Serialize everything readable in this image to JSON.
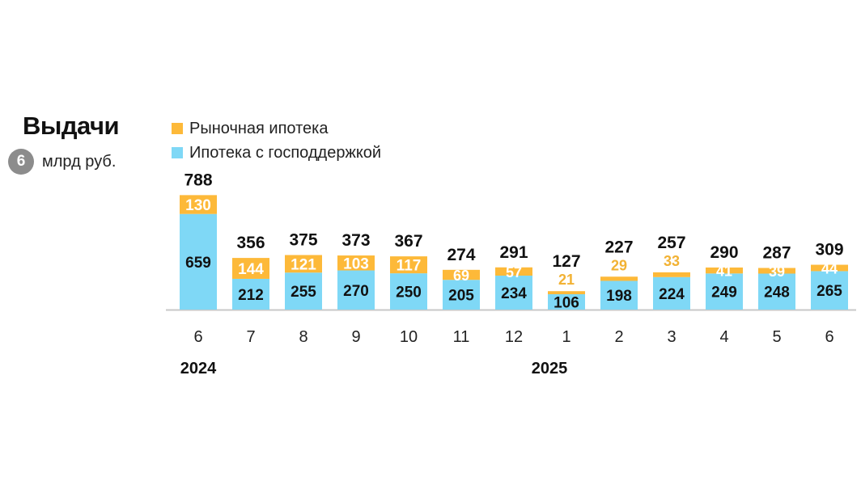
{
  "title": "Выдачи",
  "unit_badge": "6",
  "unit_text": "млрд руб.",
  "colors": {
    "market": "#FDB939",
    "state": "#7FD8F6",
    "market_label_dark": "#ffffff",
    "market_label_light": "#F2B234",
    "axis": "#c8c8c8",
    "text": "#111111"
  },
  "legend": [
    {
      "label": "Рыночная ипотека",
      "color": "#FDB939"
    },
    {
      "label": "Ипотека с господдержкой",
      "color": "#7FD8F6"
    }
  ],
  "chart_data": {
    "type": "bar",
    "stacked": true,
    "categories": [
      "6",
      "7",
      "8",
      "9",
      "10",
      "11",
      "12",
      "1",
      "2",
      "3",
      "4",
      "5",
      "6"
    ],
    "year_labels": [
      {
        "label": "2024",
        "category_index": 0
      },
      {
        "label": "2025",
        "category_index": 7
      }
    ],
    "series": [
      {
        "name": "Ипотека с господдержкой",
        "values": [
          659,
          212,
          255,
          270,
          250,
          205,
          234,
          106,
          198,
          224,
          249,
          248,
          265
        ]
      },
      {
        "name": "Рыночная ипотека",
        "values": [
          130,
          144,
          121,
          103,
          117,
          69,
          57,
          21,
          29,
          33,
          41,
          39,
          44
        ]
      }
    ],
    "totals": [
      788,
      356,
      375,
      373,
      367,
      274,
      291,
      127,
      227,
      257,
      290,
      287,
      309
    ]
  }
}
